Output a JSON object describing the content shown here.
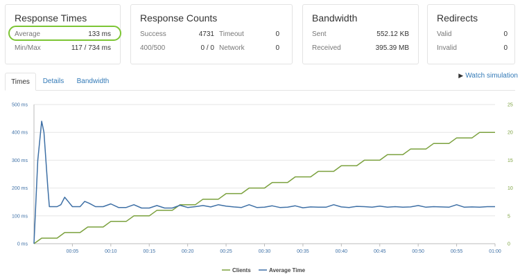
{
  "response_times": {
    "title": "Response Times",
    "average_label": "Average",
    "average_value": "133 ms",
    "minmax_label": "Min/Max",
    "minmax_value": "117 / 734 ms"
  },
  "response_counts": {
    "title": "Response Counts",
    "success_label": "Success",
    "success_value": "4731",
    "timeout_label": "Timeout",
    "timeout_value": "0",
    "err_label": "400/500",
    "err_value": "0 / 0",
    "network_label": "Network",
    "network_value": "0"
  },
  "bandwidth": {
    "title": "Bandwidth",
    "sent_label": "Sent",
    "sent_value": "552.12 KB",
    "received_label": "Received",
    "received_value": "395.39 MB"
  },
  "redirects": {
    "title": "Redirects",
    "valid_label": "Valid",
    "valid_value": "0",
    "invalid_label": "Invalid",
    "invalid_value": "0"
  },
  "tabs": [
    {
      "label": "Times",
      "active": true
    },
    {
      "label": "Details",
      "active": false
    },
    {
      "label": "Bandwidth",
      "active": false
    }
  ],
  "watch_label": "Watch simulation",
  "colors": {
    "clients": "#7aa03c",
    "average_time": "#3d6fa5",
    "highlight": "#7cc534",
    "link": "#337ab7"
  },
  "chart_data": {
    "type": "line",
    "x_ticks": [
      "00:05",
      "00:10",
      "00:15",
      "00:20",
      "00:25",
      "00:30",
      "00:35",
      "00:40",
      "00:45",
      "00:50",
      "00:55",
      "01:00"
    ],
    "y_left_ticks": [
      "0 ms",
      "100 ms",
      "200 ms",
      "300 ms",
      "400 ms",
      "500 ms"
    ],
    "y_right_ticks": [
      "0",
      "5",
      "10",
      "15",
      "20",
      "25"
    ],
    "x_range": [
      0,
      60
    ],
    "y_left_range": [
      0,
      500
    ],
    "y_right_range": [
      0,
      25
    ],
    "grid": true,
    "legend_position": "bottom",
    "series": [
      {
        "name": "Clients",
        "axis": "right",
        "x": [
          0,
          1,
          3,
          4,
          6,
          7,
          9,
          10,
          12,
          13,
          15,
          16,
          18,
          19,
          21,
          22,
          24,
          25,
          27,
          28,
          30,
          31,
          33,
          34,
          36,
          37,
          39,
          40,
          42,
          43,
          45,
          46,
          48,
          49,
          51,
          52,
          54,
          55,
          57,
          58,
          60
        ],
        "values": [
          0,
          1,
          1,
          2,
          2,
          3,
          3,
          4,
          4,
          5,
          5,
          6,
          6,
          7,
          7,
          8,
          8,
          9,
          9,
          10,
          10,
          11,
          11,
          12,
          12,
          13,
          13,
          14,
          14,
          15,
          15,
          16,
          16,
          17,
          17,
          18,
          18,
          19,
          19,
          20,
          20
        ]
      },
      {
        "name": "Average Time",
        "axis": "left",
        "x": [
          0,
          0.5,
          1,
          1.3,
          1.8,
          2,
          3,
          3.5,
          4,
          4.5,
          5,
          6,
          6.6,
          7.2,
          8,
          9,
          10,
          11,
          12,
          13,
          14,
          15,
          16,
          17,
          18,
          19,
          20,
          21,
          22,
          23,
          24,
          25,
          26,
          27,
          28,
          29,
          30,
          31,
          32,
          33,
          34,
          35,
          36,
          37,
          38,
          39,
          40,
          41,
          42,
          43,
          44,
          45,
          46,
          47,
          48,
          49,
          50,
          51,
          52,
          53,
          54,
          55,
          56,
          57,
          58,
          59,
          60
        ],
        "values": [
          0,
          300,
          440,
          400,
          200,
          133,
          133,
          140,
          167,
          150,
          133,
          133,
          152,
          145,
          133,
          133,
          143,
          130,
          130,
          140,
          128,
          128,
          137,
          128,
          128,
          138,
          130,
          133,
          137,
          132,
          140,
          135,
          132,
          130,
          140,
          130,
          131,
          136,
          130,
          131,
          136,
          129,
          132,
          131,
          131,
          140,
          132,
          130,
          134,
          133,
          131,
          135,
          131,
          133,
          131,
          132,
          137,
          131,
          133,
          132,
          131,
          140,
          131,
          132,
          131,
          133,
          133
        ]
      }
    ]
  }
}
